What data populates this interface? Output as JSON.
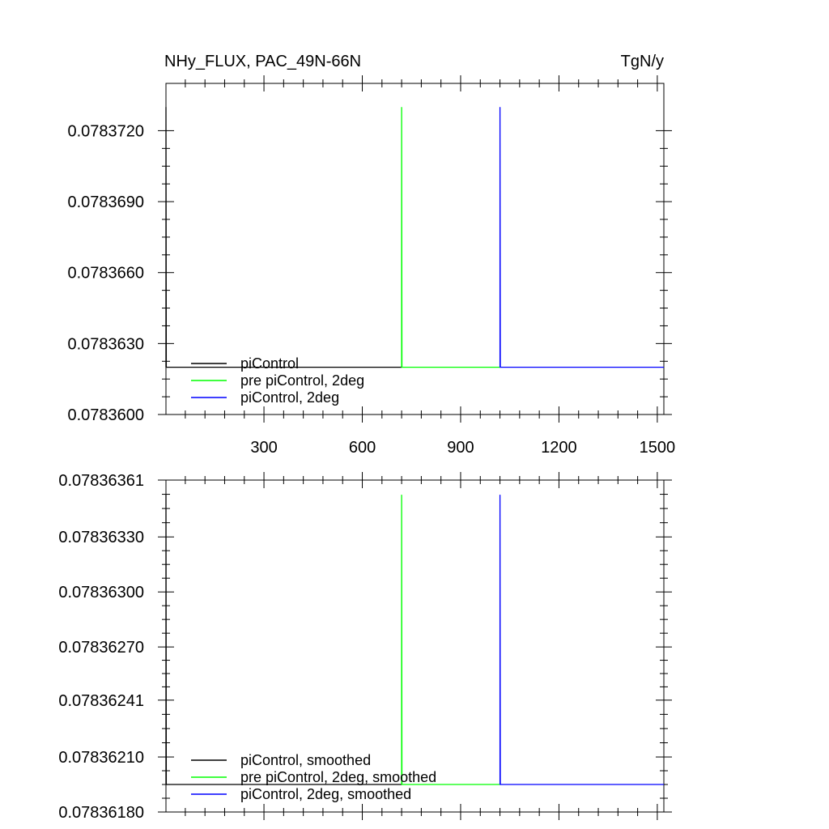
{
  "title_left": "NHy_FLUX, PAC_49N-66N",
  "title_right": "TgN/y",
  "chart_data": [
    {
      "type": "line",
      "title": "NHy_FLUX, PAC_49N-66N",
      "units": "TgN/y",
      "xlim": [
        1,
        1520
      ],
      "ylim": [
        0.07836,
        0.078374
      ],
      "x_ticks": [
        300,
        600,
        900,
        1200,
        1500
      ],
      "x_tick_labels": [
        "300",
        "600",
        "900",
        "1200",
        "1500"
      ],
      "y_ticks": [
        0.07836,
        0.078363,
        0.078366,
        0.078369,
        0.078372
      ],
      "y_tick_labels": [
        "0.0783600",
        "0.0783630",
        "0.0783660",
        "0.0783690",
        "0.0783720"
      ],
      "legend_position": "bottom-left",
      "series": [
        {
          "name": "piControl",
          "color": "#000000",
          "x": [
            1,
            1,
            2,
            720
          ],
          "y": [
            0.078362,
            0.078373,
            0.078362,
            0.078362
          ]
        },
        {
          "name": "pre piControl, 2deg",
          "color": "#00ff00",
          "x": [
            720,
            720,
            721,
            1020
          ],
          "y": [
            0.078362,
            0.078373,
            0.078362,
            0.078362
          ]
        },
        {
          "name": "piControl, 2deg",
          "color": "#0000ff",
          "x": [
            1020,
            1020,
            1021,
            1520
          ],
          "y": [
            0.078362,
            0.078373,
            0.078362,
            0.078362
          ]
        }
      ]
    },
    {
      "type": "line",
      "xlim": [
        1,
        1520
      ],
      "ylim": [
        0.0783618,
        0.07836361
      ],
      "x_ticks": [
        300,
        600,
        900,
        1200,
        1500
      ],
      "x_tick_labels": [
        "",
        "",
        "",
        "",
        ""
      ],
      "y_ticks": [
        0.0783618,
        0.0783621,
        0.07836241,
        0.0783627,
        0.078363,
        0.0783633,
        0.07836361
      ],
      "y_tick_labels": [
        "0.07836180",
        "0.07836210",
        "0.07836241",
        "0.07836270",
        "0.07836300",
        "0.07836330",
        "0.07836361"
      ],
      "legend_position": "bottom-left",
      "series": [
        {
          "name": "piControl, smoothed",
          "color": "#000000",
          "x": [
            1,
            1,
            2,
            720
          ],
          "y": [
            0.07836195,
            0.07836353,
            0.07836195,
            0.07836195
          ]
        },
        {
          "name": "pre piControl, 2deg, smoothed",
          "color": "#00ff00",
          "x": [
            720,
            720,
            721,
            1020
          ],
          "y": [
            0.07836195,
            0.07836353,
            0.07836195,
            0.07836195
          ]
        },
        {
          "name": "piControl, 2deg, smoothed",
          "color": "#0000ff",
          "x": [
            1020,
            1020,
            1021,
            1520
          ],
          "y": [
            0.07836195,
            0.07836353,
            0.07836195,
            0.07836195
          ]
        }
      ]
    }
  ]
}
